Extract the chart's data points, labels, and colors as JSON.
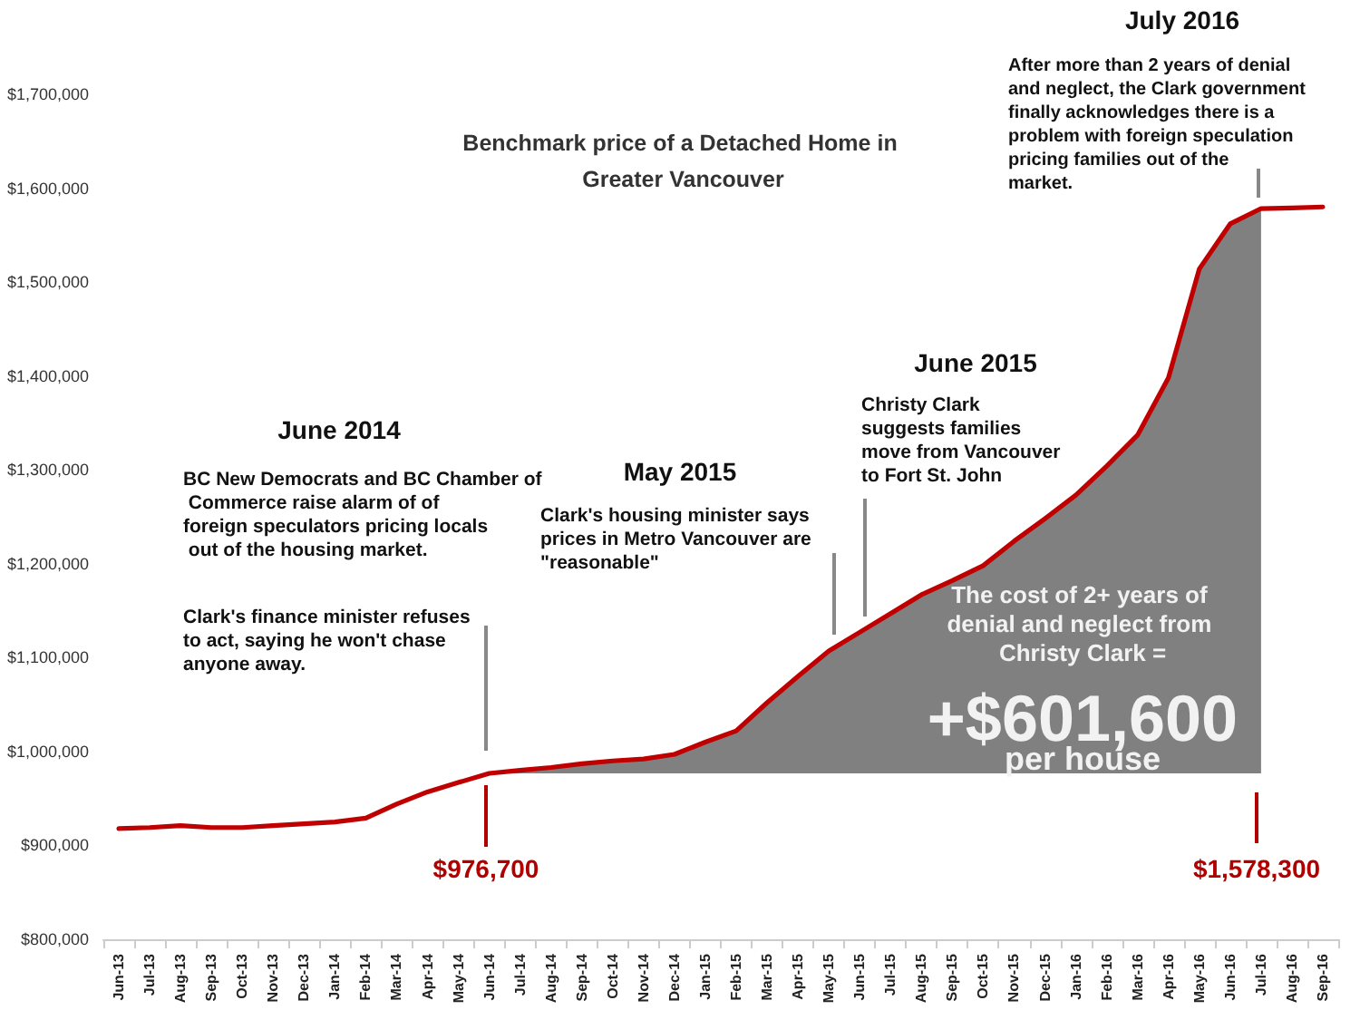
{
  "chart_data": {
    "type": "line",
    "title": "Benchmark price of a Detached Home in Greater Vancouver",
    "categories": [
      "Jun-13",
      "Jul-13",
      "Aug-13",
      "Sep-13",
      "Oct-13",
      "Nov-13",
      "Dec-13",
      "Jan-14",
      "Feb-14",
      "Mar-14",
      "Apr-14",
      "May-14",
      "Jun-14",
      "Jul-14",
      "Aug-14",
      "Sep-14",
      "Oct-14",
      "Nov-14",
      "Dec-14",
      "Jan-15",
      "Feb-15",
      "Mar-15",
      "Apr-15",
      "May-15",
      "Jun-15",
      "Jul-15",
      "Aug-15",
      "Sep-15",
      "Oct-15",
      "Nov-15",
      "Dec-15",
      "Jan-16",
      "Feb-16",
      "Mar-16",
      "Apr-16",
      "May-16",
      "Jun-16",
      "Jul-16",
      "Aug-16",
      "Sep-16"
    ],
    "series": [
      {
        "type": "area",
        "color": "#808080",
        "values": [
          null,
          null,
          null,
          null,
          null,
          null,
          null,
          null,
          null,
          null,
          null,
          null,
          976700,
          980000,
          983000,
          987000,
          990000,
          992000,
          997000,
          1010000,
          1022000,
          1052000,
          1080000,
          1107000,
          1127000,
          1147000,
          1167000,
          1182000,
          1198000,
          1224000,
          1248000,
          1273000,
          1304000,
          1337000,
          1398000,
          1514000,
          1562000,
          1578300,
          null,
          null
        ]
      },
      {
        "color": "#c00000",
        "values": [
          918000,
          919000,
          921000,
          919000,
          919000,
          921000,
          923000,
          925000,
          929000,
          944000,
          957000,
          967000,
          976700,
          980000,
          983000,
          987000,
          990000,
          992000,
          997000,
          1010000,
          1022000,
          1052000,
          1080000,
          1107000,
          1127000,
          1147000,
          1167000,
          1182000,
          1198000,
          1224000,
          1248000,
          1273000,
          1304000,
          1337000,
          1398000,
          1514000,
          1562000,
          1578300,
          1579000,
          1580000
        ]
      }
    ],
    "ylim": [
      800000,
      1700000
    ],
    "yticks": [
      {
        "value": 800000,
        "label": "$800,000"
      },
      {
        "value": 900000,
        "label": "$900,000"
      },
      {
        "value": 1000000,
        "label": "$1,000,000"
      },
      {
        "value": 1100000,
        "label": "$1,100,000"
      },
      {
        "value": 1200000,
        "label": "$1,200,000"
      },
      {
        "value": 1300000,
        "label": "$1,300,000"
      },
      {
        "value": 1400000,
        "label": "$1,400,000"
      },
      {
        "value": 1500000,
        "label": "$1,500,000"
      },
      {
        "value": 1600000,
        "label": "$1,600,000"
      },
      {
        "value": 1700000,
        "label": "$1,700,000"
      }
    ],
    "grid": false,
    "marker": "none",
    "line_style": "solid",
    "annotations": [
      "June 2014",
      "BC New Democrats and BC Chamber of Commerce raise alarm of of foreign speculators pricing locals out of the housing market.",
      "Clark's finance minister refuses to act, saying he won't chase anyone away.",
      "May 2015",
      "Clark's housing minister says prices in Metro Vancouver are \"reasonable\"",
      "June 2015",
      "Christy Clark suggests families move from Vancouver to Fort St. John",
      "July 2016",
      "After more than 2 years of denial and neglect, the Clark government finally acknowledges there is a problem with foreign speculation pricing families out of the market.",
      "$976,700",
      "$1,578,300",
      "The cost of 2+ years of denial and neglect from Christy Clark =",
      "+$601,600",
      "per house"
    ]
  }
}
